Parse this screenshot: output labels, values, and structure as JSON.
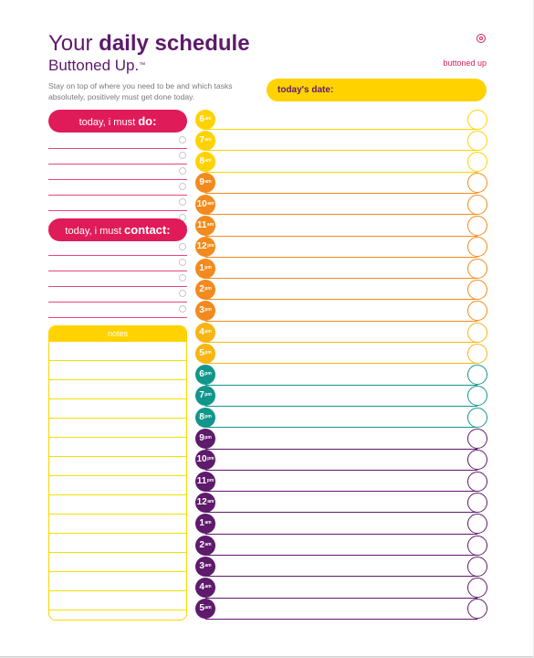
{
  "header": {
    "title_prefix": "Your",
    "title_bold": "daily schedule",
    "subtitle_brand": "Buttoned Up.",
    "trademark": "™",
    "tagline": "Stay on top of where you need to be and which tasks absolutely, positively must get done today.",
    "brand_name": "buttoned up",
    "date_label": "today's date:"
  },
  "todo": {
    "label_prefix": "today, i must",
    "label_bold": "do:"
  },
  "contact": {
    "label_prefix": "today, i must",
    "label_bold": "contact:"
  },
  "notes": {
    "label": "notes"
  },
  "schedule": [
    {
      "hour": "6",
      "suffix": "am",
      "color": "#ffd200"
    },
    {
      "hour": "7",
      "suffix": "am",
      "color": "#ffd200"
    },
    {
      "hour": "8",
      "suffix": "am",
      "color": "#ffd200"
    },
    {
      "hour": "9",
      "suffix": "am",
      "color": "#f28a1e"
    },
    {
      "hour": "10",
      "suffix": "am",
      "color": "#f28a1e"
    },
    {
      "hour": "11",
      "suffix": "am",
      "color": "#f28a1e"
    },
    {
      "hour": "12",
      "suffix": "pm",
      "color": "#f28a1e"
    },
    {
      "hour": "1",
      "suffix": "pm",
      "color": "#f28a1e"
    },
    {
      "hour": "2",
      "suffix": "pm",
      "color": "#f28a1e"
    },
    {
      "hour": "3",
      "suffix": "pm",
      "color": "#f28a1e"
    },
    {
      "hour": "4",
      "suffix": "pm",
      "color": "#f6b512"
    },
    {
      "hour": "5",
      "suffix": "pm",
      "color": "#f6b512"
    },
    {
      "hour": "6",
      "suffix": "pm",
      "color": "#12968c"
    },
    {
      "hour": "7",
      "suffix": "pm",
      "color": "#12968c"
    },
    {
      "hour": "8",
      "suffix": "pm",
      "color": "#12968c"
    },
    {
      "hour": "9",
      "suffix": "pm",
      "color": "#5e1a6b"
    },
    {
      "hour": "10",
      "suffix": "pm",
      "color": "#5e1a6b"
    },
    {
      "hour": "11",
      "suffix": "pm",
      "color": "#5e1a6b"
    },
    {
      "hour": "12",
      "suffix": "am",
      "color": "#5e1a6b"
    },
    {
      "hour": "1",
      "suffix": "am",
      "color": "#5e1a6b"
    },
    {
      "hour": "2",
      "suffix": "am",
      "color": "#5e1a6b"
    },
    {
      "hour": "3",
      "suffix": "am",
      "color": "#5e1a6b"
    },
    {
      "hour": "4",
      "suffix": "am",
      "color": "#5e1a6b"
    },
    {
      "hour": "5",
      "suffix": "am",
      "color": "#5e1a6b"
    }
  ],
  "colors": {
    "accent_pink": "#e01b5a",
    "accent_yellow": "#ffd200",
    "title_purple": "#5e1a6b",
    "brand_pink": "#d81d5b"
  }
}
